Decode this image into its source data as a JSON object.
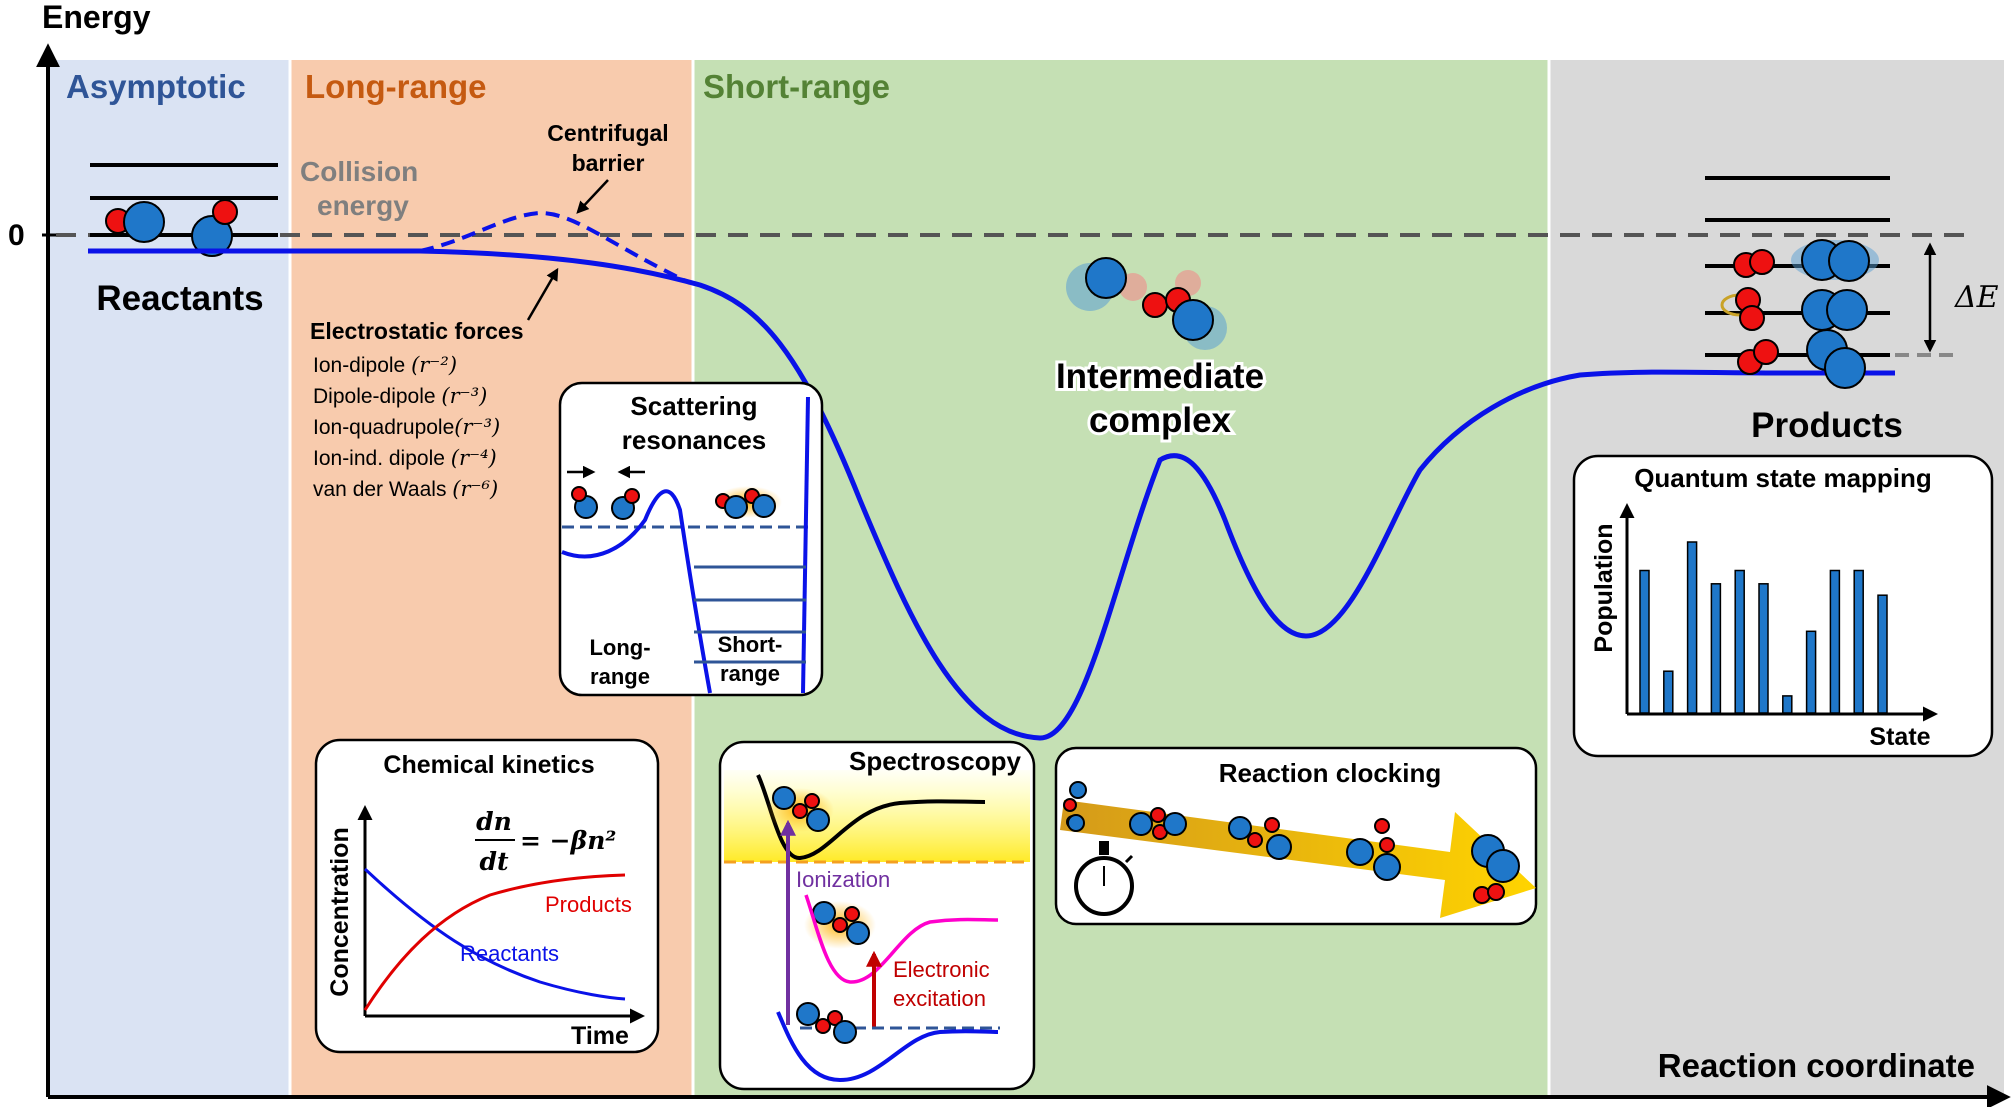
{
  "axes": {
    "y_label": "Energy",
    "x_label": "Reaction coordinate",
    "zero_label": "0"
  },
  "regions": [
    {
      "key": "asymptotic",
      "label": "Asymptotic",
      "color": "#2f5597",
      "bg": "#dae3f3"
    },
    {
      "key": "long_range",
      "label": "Long-range",
      "color": "#c55a11",
      "bg": "#f8cbad"
    },
    {
      "key": "short_range",
      "label": "Short-range",
      "color": "#548235",
      "bg": "#c5e0b4"
    },
    {
      "key": "products_region",
      "label": "",
      "color": "#000000",
      "bg": "#d9d9d9"
    }
  ],
  "labels": {
    "reactants": "Reactants",
    "collision_energy_1": "Collision",
    "collision_energy_2": "energy",
    "centrifugal_1": "Centrifugal",
    "centrifugal_2": "barrier",
    "electrostatic_title": "Electrostatic forces",
    "intermediate_1": "Intermediate",
    "intermediate_2": "complex",
    "products": "Products",
    "delta_e": "ΔE"
  },
  "forces": [
    {
      "name": "Ion-dipole ",
      "power": "(r⁻²)"
    },
    {
      "name": "Dipole-dipole ",
      "power": "(r⁻³)"
    },
    {
      "name": "Ion-quadrupole",
      "power": "(r⁻³)"
    },
    {
      "name": "Ion-ind. dipole ",
      "power": "(r⁻⁴)"
    },
    {
      "name": "van der Waals ",
      "power": "(r⁻⁶)"
    }
  ],
  "scattering": {
    "title_1": "Scattering",
    "title_2": "resonances",
    "long_1": "Long-",
    "long_2": "range",
    "short_1": "Short-",
    "short_2": "range"
  },
  "kinetics": {
    "title": "Chemical kinetics",
    "y_label": "Concentration",
    "x_label": "Time",
    "equation_num": "dn",
    "equation_den": "dt",
    "equation_rhs": "= −βn²",
    "products": "Products",
    "reactants": "Reactants"
  },
  "spectroscopy": {
    "title": "Spectroscopy",
    "ionization": "Ionization",
    "electronic_1": "Electronic",
    "electronic_2": "excitation"
  },
  "clocking": {
    "title": "Reaction clocking"
  },
  "quantum": {
    "title": "Quantum state mapping",
    "y_label": "Population",
    "x_label": "State",
    "bars": [
      0.75,
      0.22,
      0.9,
      0.68,
      0.75,
      0.68,
      0.09,
      0.43,
      0.75,
      0.75,
      0.62
    ]
  },
  "colors": {
    "curve": "#0a12e8",
    "dashed": "#555555",
    "atom_blue": "#1f77c9",
    "atom_red": "#ee1111"
  }
}
